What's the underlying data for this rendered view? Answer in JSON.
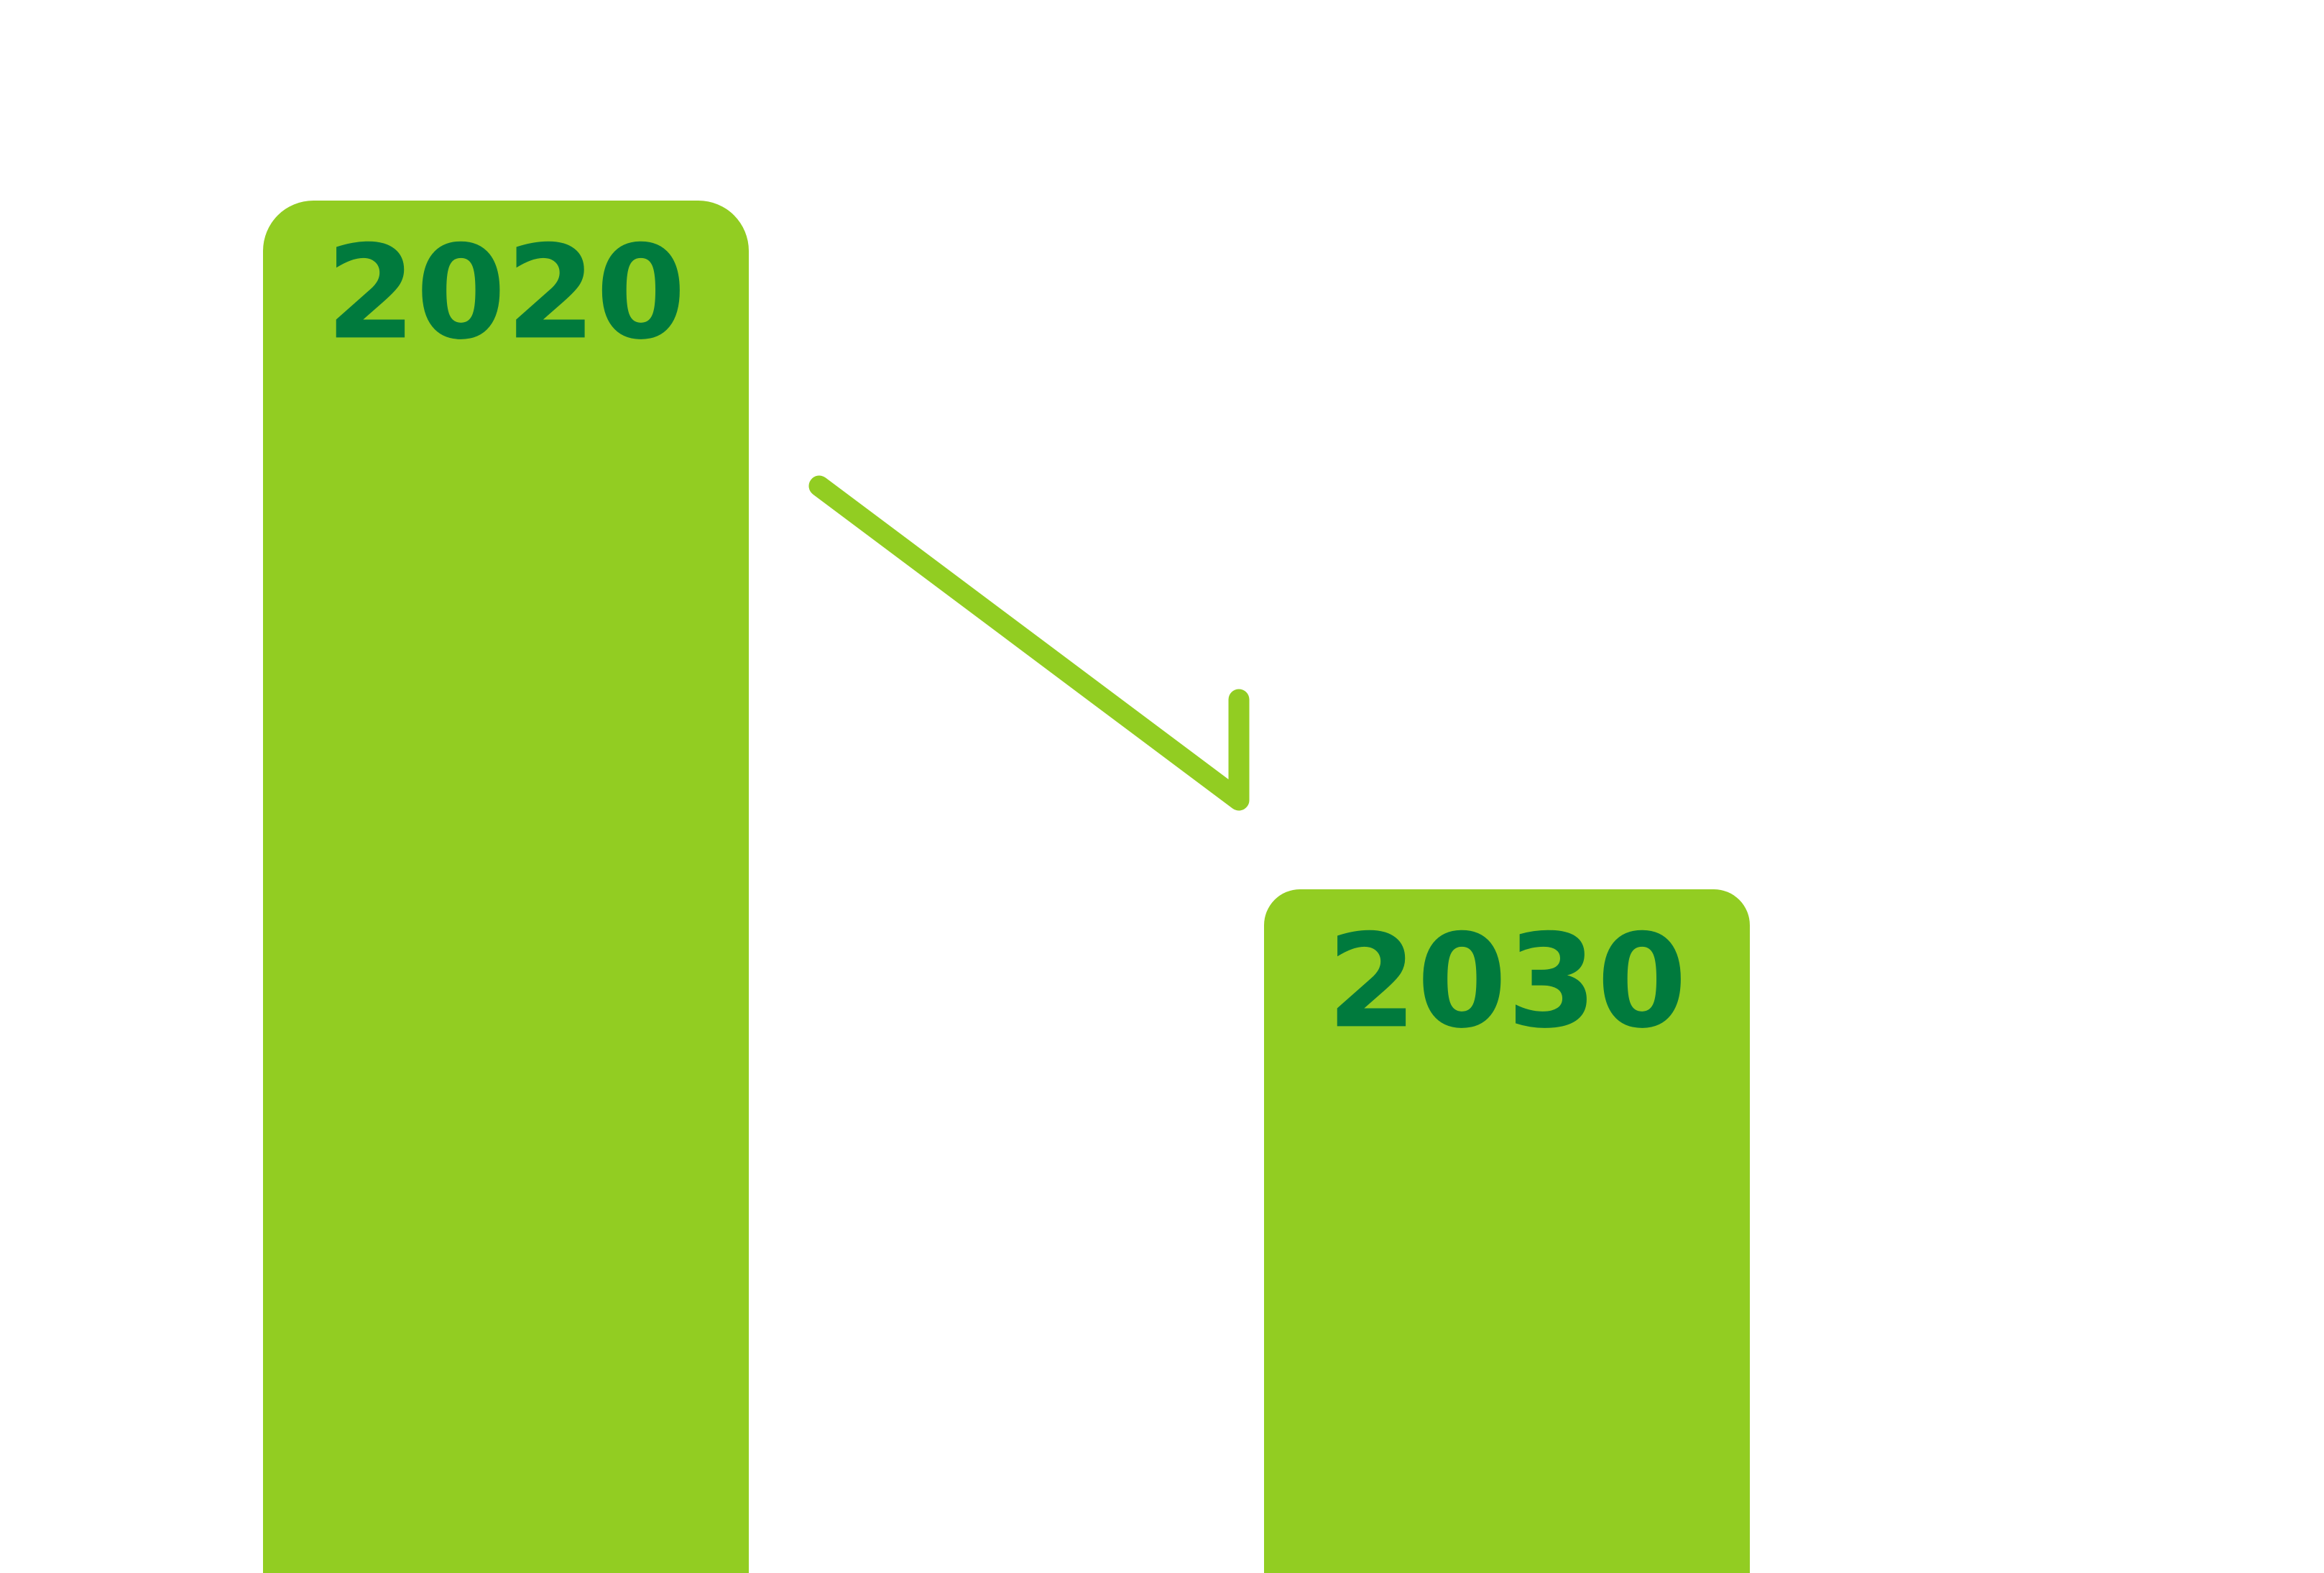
{
  "bars": [
    {
      "label": "2020"
    },
    {
      "label": "2030"
    }
  ]
}
